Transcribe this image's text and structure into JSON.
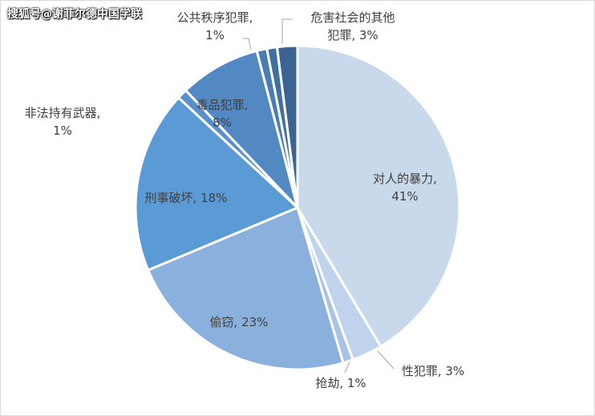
{
  "watermark": "搜狐号@谢菲尔德中国学联",
  "chart_data": {
    "type": "pie",
    "title": "",
    "slices": [
      {
        "name": "对人的暴力",
        "value": 41,
        "label": [
          "对人的暴力,",
          "41%"
        ],
        "color": "#c9d9ec"
      },
      {
        "name": "性犯罪",
        "value": 3,
        "label": [
          "性犯罪, 3%"
        ],
        "color": "#bfd3ed"
      },
      {
        "name": "抢劫",
        "value": 1,
        "label": [
          "抢劫, 1%"
        ],
        "color": "#a9c3e4"
      },
      {
        "name": "偷窃",
        "value": 23,
        "label": [
          "偷窃, 23%"
        ],
        "color": "#8ab0dd"
      },
      {
        "name": "刑事破坏",
        "value": 18,
        "label": [
          "刑事破坏, 18%"
        ],
        "color": "#5b9bd5"
      },
      {
        "name": "非法持有武器",
        "value": 1,
        "label": [
          "非法持有武器,",
          "1%"
        ],
        "color": "#5a8fcb"
      },
      {
        "name": "毒品犯罪",
        "value": 8,
        "label": [
          "毒品犯罪,",
          "8%"
        ],
        "color": "#5389c2"
      },
      {
        "name": "公共秩序犯罪",
        "value": 1,
        "label": [
          "公共秩序犯罪,",
          "1%"
        ],
        "color": "#4a7db3"
      },
      {
        "name": "危害社会的其他犯罪",
        "value": 1,
        "label": [],
        "color": "#416f9f"
      },
      {
        "name": "危害社会的其他犯罪2",
        "value": 2,
        "label": [
          "危害社会的其他",
          "犯罪, 3%"
        ],
        "color": "#3b6590"
      }
    ]
  }
}
